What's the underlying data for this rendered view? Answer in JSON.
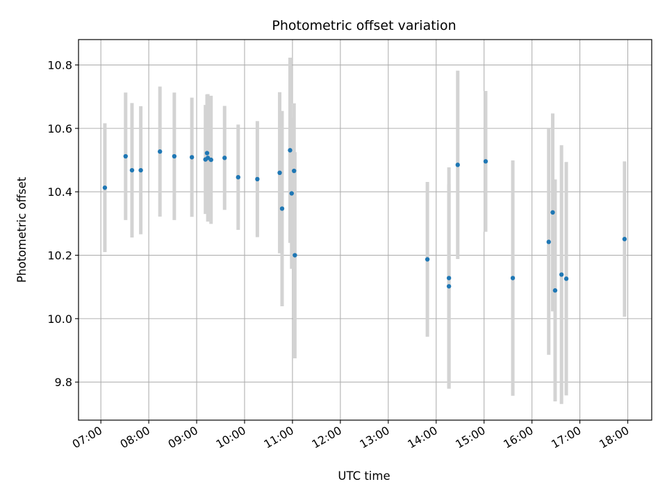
{
  "chart_data": {
    "type": "scatter",
    "title": "Photometric offset variation",
    "xlabel": "UTC time",
    "ylabel": "Photometric offset",
    "x_axis_type": "time",
    "xlim": [
      "06:32",
      "18:30"
    ],
    "ylim": [
      9.68,
      10.88
    ],
    "x_ticks": [
      "07:00",
      "08:00",
      "09:00",
      "10:00",
      "11:00",
      "12:00",
      "13:00",
      "14:00",
      "15:00",
      "16:00",
      "17:00",
      "18:00"
    ],
    "y_ticks": [
      9.8,
      10.0,
      10.2,
      10.4,
      10.6,
      10.8
    ],
    "y_tick_labels": [
      "9.8",
      "10.0",
      "10.2",
      "10.4",
      "10.6",
      "10.8"
    ],
    "grid": true,
    "marker_color": "#1f77b4",
    "errorbar_color": "#d3d3d3",
    "series": [
      {
        "points": [
          {
            "time": "07:05",
            "y": 10.413,
            "err": 0.203
          },
          {
            "time": "07:31",
            "y": 10.512,
            "err": 0.201
          },
          {
            "time": "07:39",
            "y": 10.468,
            "err": 0.212
          },
          {
            "time": "07:50",
            "y": 10.468,
            "err": 0.202
          },
          {
            "time": "08:14",
            "y": 10.527,
            "err": 0.205
          },
          {
            "time": "08:32",
            "y": 10.512,
            "err": 0.201
          },
          {
            "time": "08:54",
            "y": 10.509,
            "err": 0.188
          },
          {
            "time": "09:11",
            "y": 10.502,
            "err": 0.172
          },
          {
            "time": "09:13",
            "y": 10.522,
            "err": 0.185
          },
          {
            "time": "09:14",
            "y": 10.507,
            "err": 0.201
          },
          {
            "time": "09:18",
            "y": 10.501,
            "err": 0.202
          },
          {
            "time": "09:35",
            "y": 10.507,
            "err": 0.164
          },
          {
            "time": "09:52",
            "y": 10.446,
            "err": 0.166
          },
          {
            "time": "10:16",
            "y": 10.44,
            "err": 0.183
          },
          {
            "time": "10:44",
            "y": 10.46,
            "err": 0.254
          },
          {
            "time": "10:47",
            "y": 10.347,
            "err": 0.308
          },
          {
            "time": "10:57",
            "y": 10.531,
            "err": 0.292
          },
          {
            "time": "10:59",
            "y": 10.395,
            "err": 0.238
          },
          {
            "time": "11:02",
            "y": 10.466,
            "err": 0.213
          },
          {
            "time": "11:03",
            "y": 10.2,
            "err": 0.325
          },
          {
            "time": "13:49",
            "y": 10.187,
            "err": 0.244
          },
          {
            "time": "14:16",
            "y": 10.128,
            "err": 0.349
          },
          {
            "time": "14:16",
            "y": 10.102,
            "err": 0.322
          },
          {
            "time": "14:27",
            "y": 10.485,
            "err": 0.297
          },
          {
            "time": "15:02",
            "y": 10.496,
            "err": 0.222
          },
          {
            "time": "15:36",
            "y": 10.128,
            "err": 0.371
          },
          {
            "time": "16:21",
            "y": 10.242,
            "err": 0.356
          },
          {
            "time": "16:26",
            "y": 10.335,
            "err": 0.312
          },
          {
            "time": "16:29",
            "y": 10.089,
            "err": 0.35
          },
          {
            "time": "16:37",
            "y": 10.139,
            "err": 0.408
          },
          {
            "time": "16:43",
            "y": 10.126,
            "err": 0.368
          },
          {
            "time": "17:56",
            "y": 10.251,
            "err": 0.245
          }
        ]
      }
    ]
  }
}
